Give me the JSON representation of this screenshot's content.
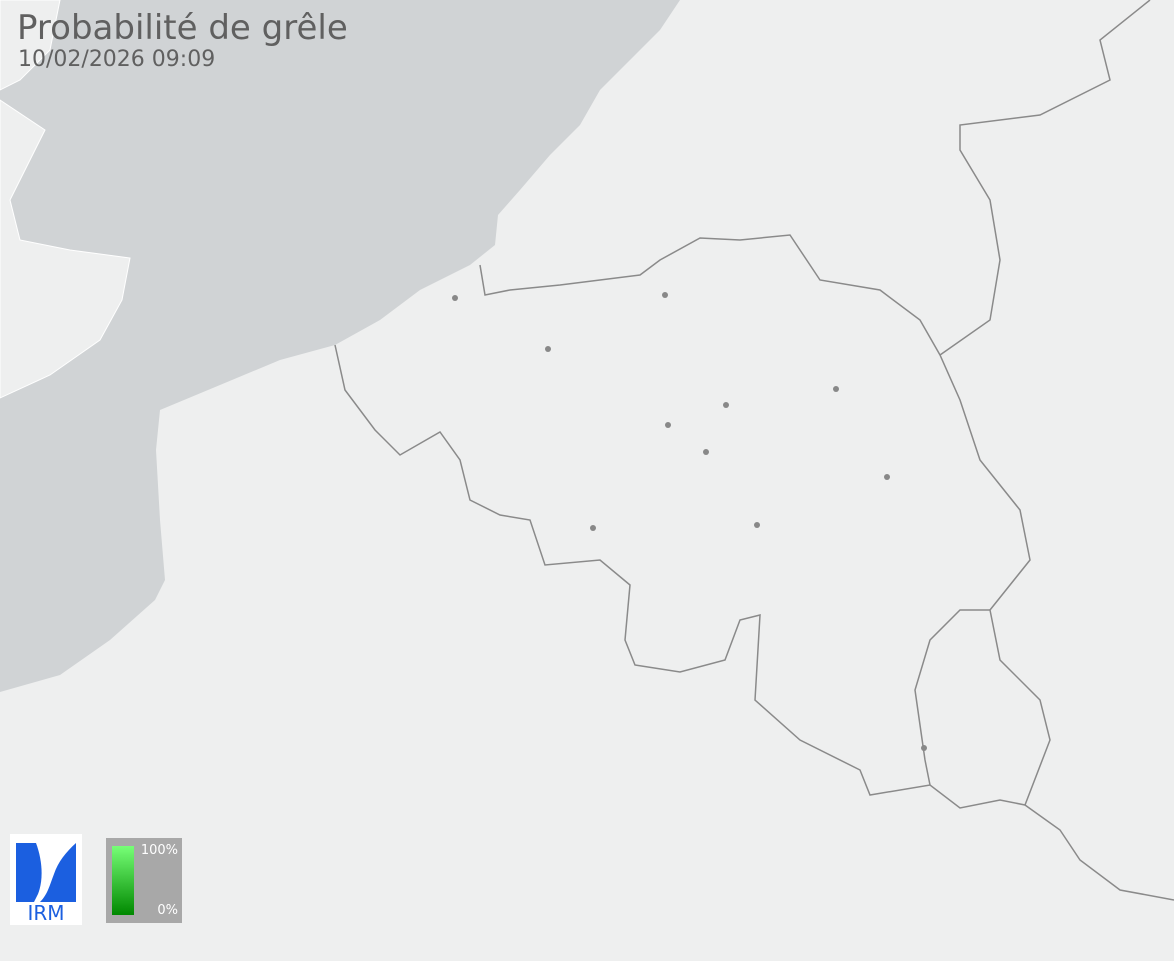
{
  "header": {
    "title": "Probabilité de grêle",
    "timestamp": "10/02/2026 09:09"
  },
  "legend": {
    "max_label": "100%",
    "min_label": "0%",
    "color_high": "#77ff77",
    "color_low": "#008800"
  },
  "logo": {
    "text": "IRM",
    "color": "#1b5fe0"
  },
  "colors": {
    "sea": "#d0d3d5",
    "land": "#eeefef",
    "border": "#8a8a8a"
  }
}
